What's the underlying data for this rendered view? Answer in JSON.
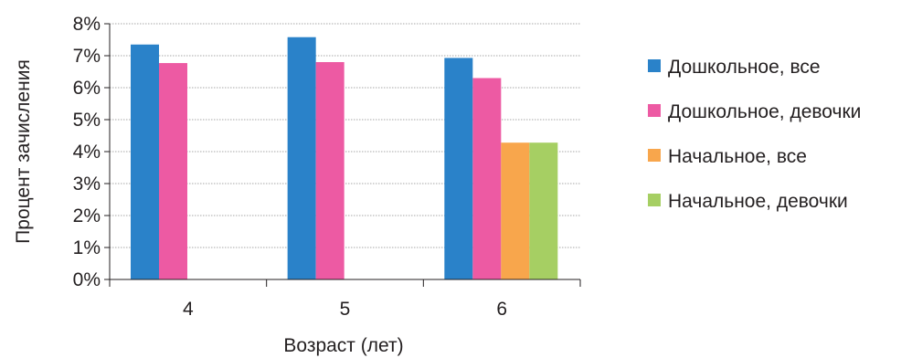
{
  "chart_data": {
    "type": "bar",
    "title": "",
    "xlabel": "Возраст (лет)",
    "ylabel": "Процент зачисления",
    "categories": [
      "4",
      "5",
      "6"
    ],
    "ylim": [
      0,
      8
    ],
    "yticks": [
      0,
      1,
      2,
      3,
      4,
      5,
      6,
      7,
      8
    ],
    "ytick_format": "{v}%",
    "grid": true,
    "legend_position": "right",
    "series": [
      {
        "name": "Дошкольное, все",
        "color": "#2a82c9",
        "values": [
          7.35,
          7.58,
          6.93
        ]
      },
      {
        "name": "Дошкольное, девочки",
        "color": "#ed5aa3",
        "values": [
          6.77,
          6.8,
          6.3
        ]
      },
      {
        "name": "Начальное, все",
        "color": "#f8a64c",
        "values": [
          null,
          null,
          4.28
        ]
      },
      {
        "name": "Начальное, девочки",
        "color": "#a6cf63",
        "values": [
          null,
          null,
          4.28
        ]
      }
    ]
  }
}
